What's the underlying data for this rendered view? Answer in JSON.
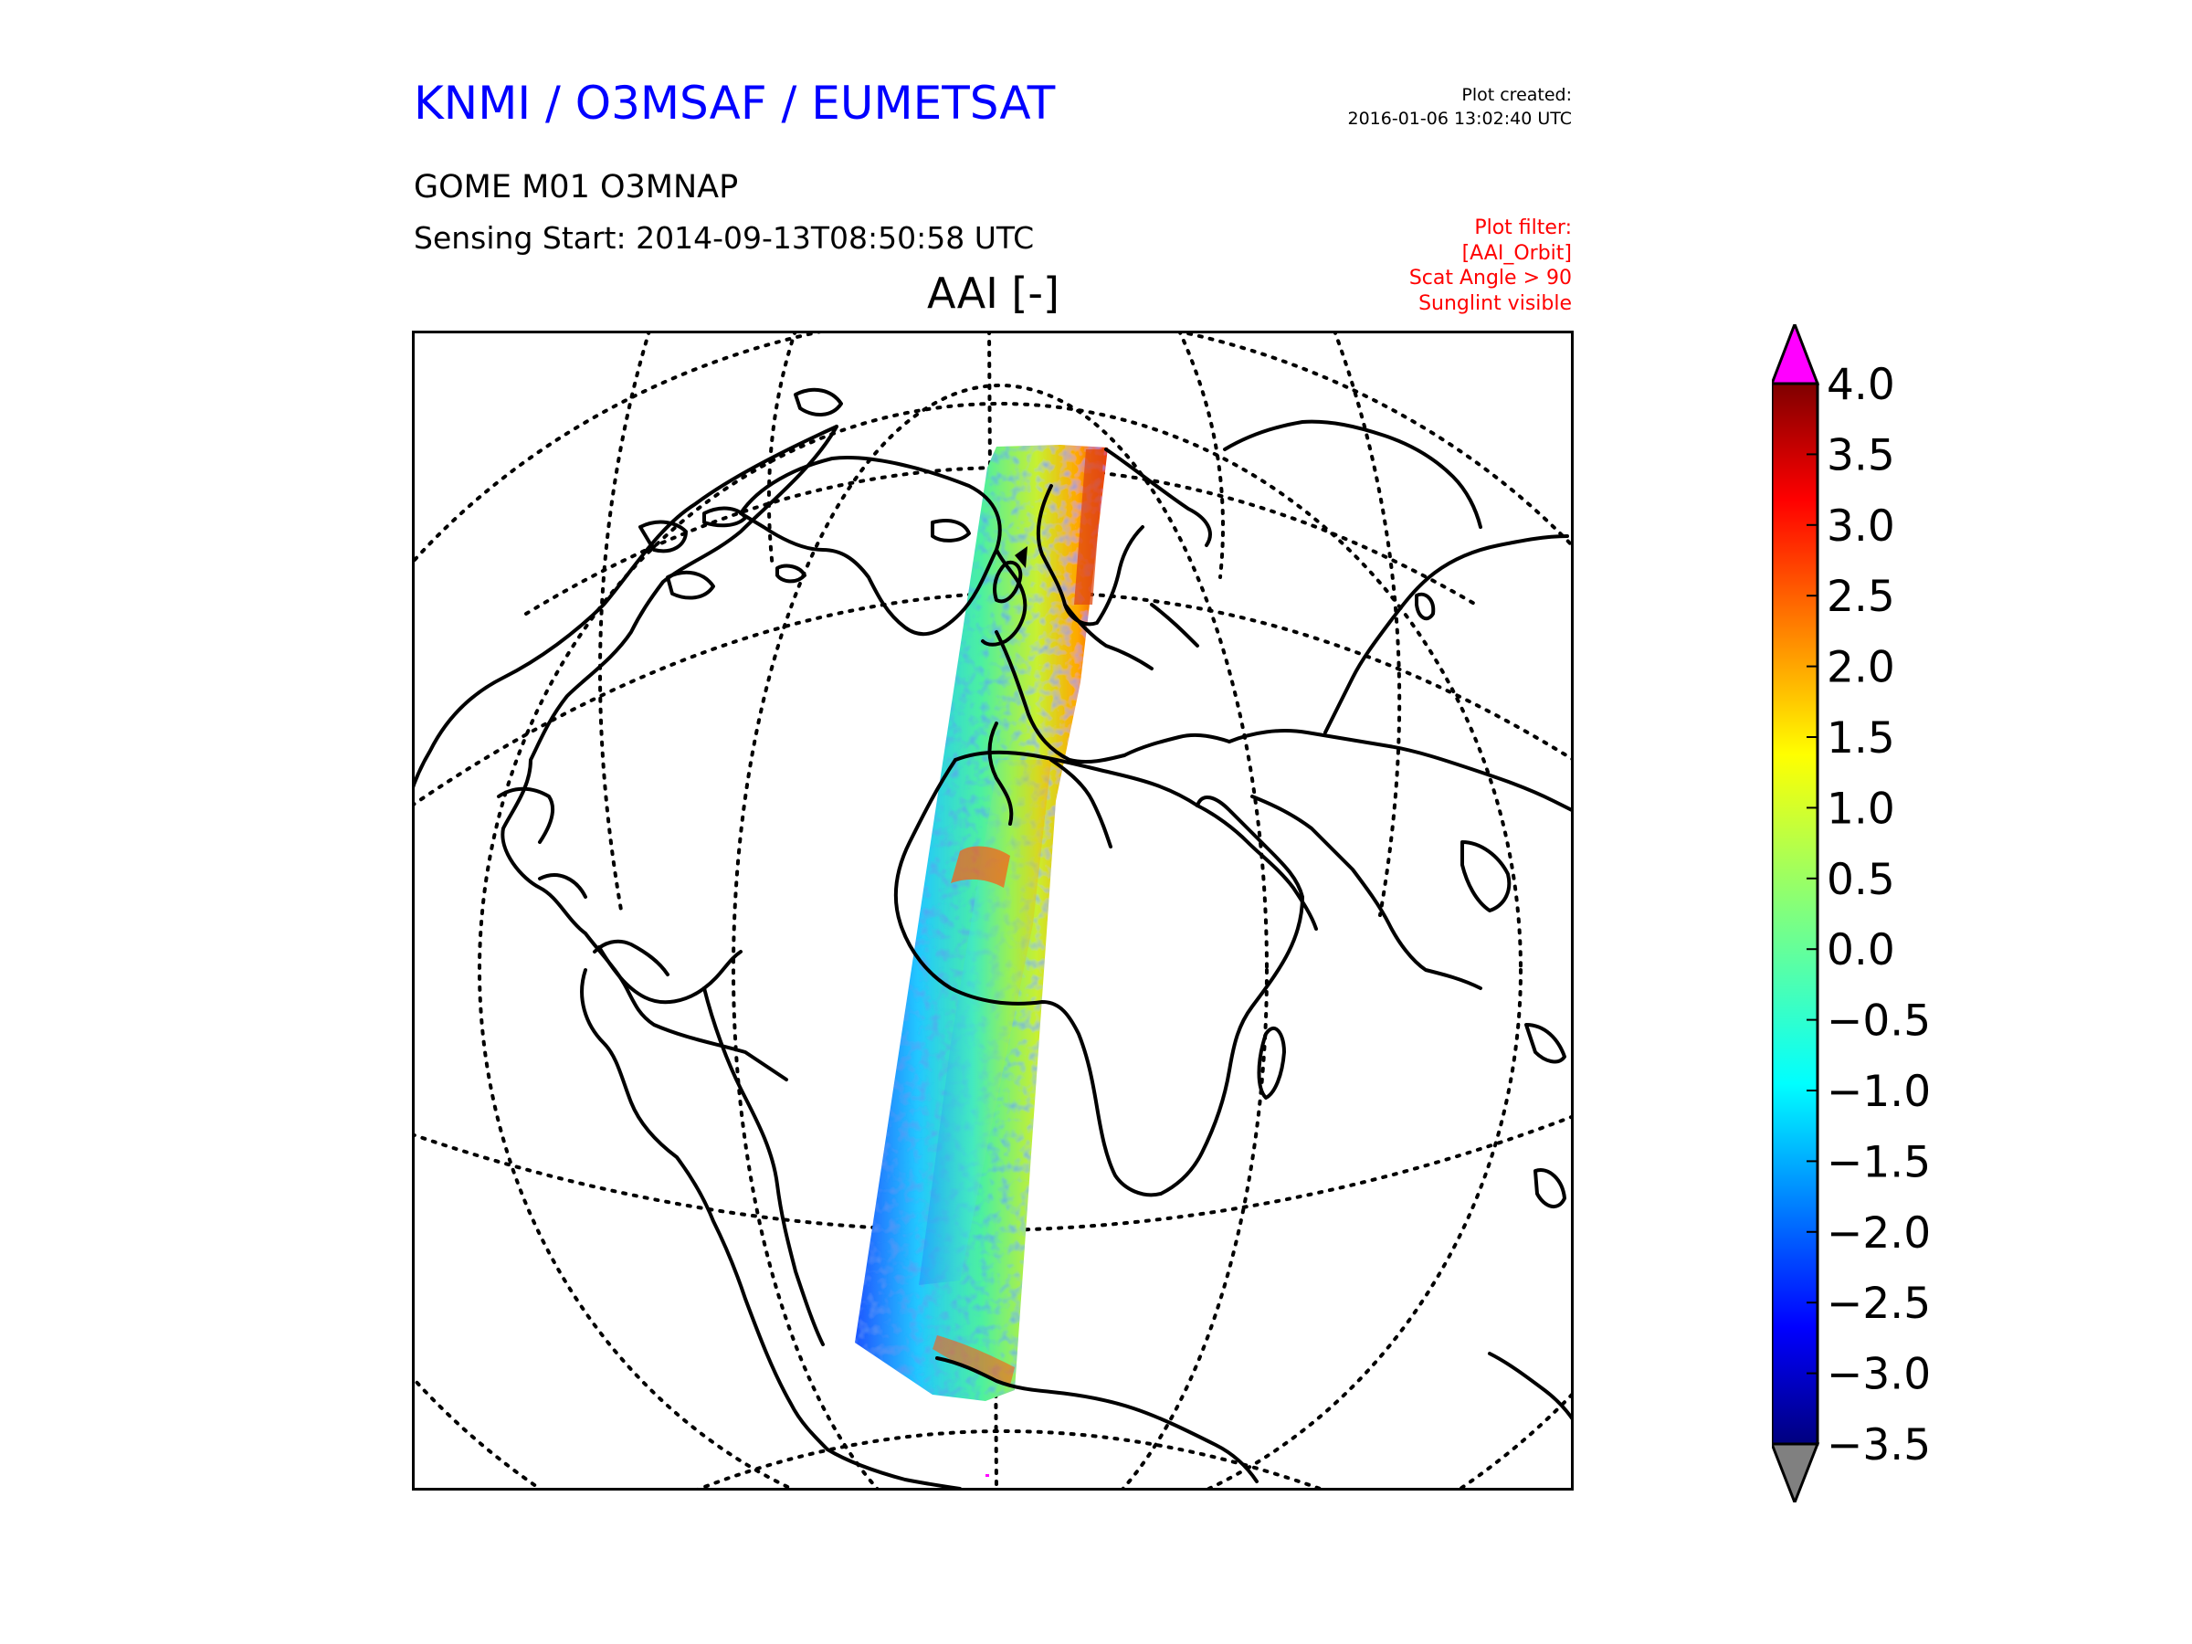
{
  "header": {
    "organization": "KNMI / O3MSAF / EUMETSAT",
    "created_label": "Plot created:",
    "created_value": "2016-01-06 13:02:40 UTC",
    "product": "GOME M01 O3MNAP",
    "sensing_start": "Sensing Start: 2014-09-13T08:50:58 UTC",
    "filter_lines": [
      "Plot filter:",
      "[AAI_Orbit]",
      "Scat Angle > 90",
      "Sunglint visible"
    ]
  },
  "plot": {
    "title": "AAI [-]",
    "projection": "orthographic",
    "swath_colormap": "jet"
  },
  "colorbar": {
    "min": -3.5,
    "max": 4.0,
    "extend": "both",
    "over_color": "#ff00ff",
    "under_color": "#808080",
    "ticks": [
      "4.0",
      "3.5",
      "3.0",
      "2.5",
      "2.0",
      "1.5",
      "1.0",
      "0.5",
      "0.0",
      "−0.5",
      "−1.0",
      "−1.5",
      "−2.0",
      "−2.5",
      "−3.0",
      "−3.5"
    ]
  }
}
